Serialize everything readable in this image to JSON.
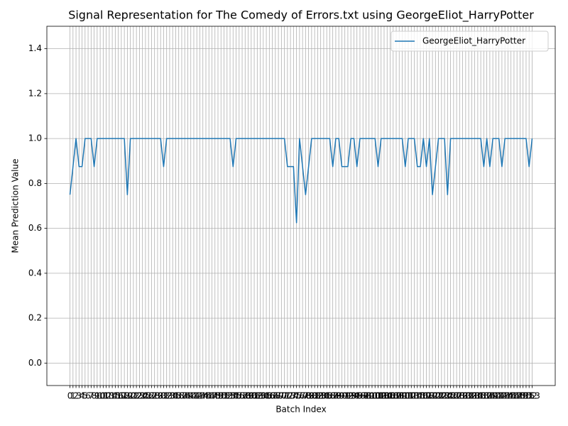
{
  "chart_data": {
    "type": "line",
    "title": "Signal Representation for The Comedy of Errors.txt using GeorgeEliot_HarryPotter",
    "xlabel": "Batch Index",
    "ylabel": "Mean Prediction Value",
    "x": [
      0,
      1,
      2,
      3,
      4,
      5,
      6,
      7,
      8,
      9,
      10,
      11,
      12,
      13,
      14,
      15,
      16,
      17,
      18,
      19,
      20,
      21,
      22,
      23,
      24,
      25,
      26,
      27,
      28,
      29,
      30,
      31,
      32,
      33,
      34,
      35,
      36,
      37,
      38,
      39,
      40,
      41,
      42,
      43,
      44,
      45,
      46,
      47,
      48,
      49,
      50,
      51,
      52,
      53,
      54,
      55,
      56,
      57,
      58,
      59,
      60,
      61,
      62,
      63,
      64,
      65,
      66,
      67,
      68,
      69,
      70,
      71,
      72,
      73,
      74,
      75,
      76,
      77,
      78,
      79,
      80,
      81,
      82,
      83,
      84,
      85,
      86,
      87,
      88,
      89,
      90,
      91,
      92,
      93,
      94,
      95,
      96,
      97,
      98,
      99,
      100,
      101,
      102,
      103,
      104,
      105,
      106,
      107,
      108,
      109,
      110,
      111,
      112,
      113,
      114,
      115,
      116,
      117,
      118,
      119,
      120,
      121,
      122,
      123,
      124,
      125,
      126,
      127,
      128,
      129,
      130,
      131,
      132,
      133,
      134,
      135,
      136,
      137,
      138,
      139,
      140,
      141,
      142,
      143,
      144,
      145,
      146,
      147,
      148,
      149,
      150,
      151,
      152,
      153
    ],
    "series": [
      {
        "name": "GeorgeEliot_HarryPotter",
        "color": "#1f77b4",
        "values": [
          0.75,
          0.875,
          1,
          0.875,
          0.875,
          1,
          1,
          1,
          0.875,
          1,
          1,
          1,
          1,
          1,
          1,
          1,
          1,
          1,
          1,
          0.75,
          1,
          1,
          1,
          1,
          1,
          1,
          1,
          1,
          1,
          1,
          1,
          0.875,
          1,
          1,
          1,
          1,
          1,
          1,
          1,
          1,
          1,
          1,
          1,
          1,
          1,
          1,
          1,
          1,
          1,
          1,
          1,
          1,
          1,
          1,
          0.875,
          1,
          1,
          1,
          1,
          1,
          1,
          1,
          1,
          1,
          1,
          1,
          1,
          1,
          1,
          1,
          1,
          1,
          0.875,
          0.875,
          0.875,
          0.625,
          1,
          0.875,
          0.75,
          0.875,
          1,
          1,
          1,
          1,
          1,
          1,
          1,
          0.875,
          1,
          1,
          0.875,
          0.875,
          0.875,
          1,
          1,
          0.875,
          1,
          1,
          1,
          1,
          1,
          1,
          0.875,
          1,
          1,
          1,
          1,
          1,
          1,
          1,
          1,
          0.875,
          1,
          1,
          1,
          0.875,
          0.875,
          1,
          0.875,
          1,
          0.75,
          0.875,
          1,
          1,
          1,
          0.75,
          1,
          1,
          1,
          1,
          1,
          1,
          1,
          1,
          1,
          1,
          1,
          0.875,
          1,
          0.875,
          1,
          1,
          1,
          0.875,
          1,
          1,
          1,
          1,
          1,
          1,
          1,
          1,
          0.875,
          1
        ]
      }
    ],
    "xlim": [
      -7.65,
      160.65
    ],
    "xticks": [
      0,
      1,
      2,
      3,
      4,
      5,
      6,
      7,
      8,
      9,
      10,
      11,
      12,
      13,
      14,
      15,
      16,
      17,
      18,
      19,
      20,
      21,
      22,
      23,
      24,
      25,
      26,
      27,
      28,
      29,
      30,
      31,
      32,
      33,
      34,
      35,
      36,
      37,
      38,
      39,
      40,
      41,
      42,
      43,
      44,
      45,
      46,
      47,
      48,
      49,
      50,
      51,
      52,
      53,
      54,
      55,
      56,
      57,
      58,
      59,
      60,
      61,
      62,
      63,
      64,
      65,
      66,
      67,
      68,
      69,
      70,
      71,
      72,
      73,
      74,
      75,
      76,
      77,
      78,
      79,
      80,
      81,
      82,
      83,
      84,
      85,
      86,
      87,
      88,
      89,
      90,
      91,
      92,
      93,
      94,
      95,
      96,
      97,
      98,
      99,
      100,
      101,
      102,
      103,
      104,
      105,
      106,
      107,
      108,
      109,
      110,
      111,
      112,
      113,
      114,
      115,
      116,
      117,
      118,
      119,
      120,
      121,
      122,
      123,
      124,
      125,
      126,
      127,
      128,
      129,
      130,
      131,
      132,
      133,
      134,
      135,
      136,
      137,
      138,
      139,
      140,
      141,
      142,
      143,
      144,
      145,
      146,
      147,
      148,
      149,
      150,
      151,
      152,
      153
    ],
    "ylim": [
      -0.1,
      1.5
    ],
    "yticks": [
      {
        "value": 0,
        "label": "0.0"
      },
      0.2,
      0.4,
      0.6,
      0.8,
      {
        "value": 1,
        "label": "1.0"
      },
      1.2,
      1.4
    ],
    "grid": true,
    "legend": "upper right"
  }
}
